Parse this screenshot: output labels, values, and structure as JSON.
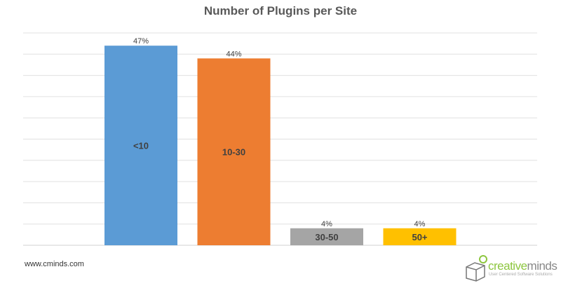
{
  "chart_data": {
    "type": "bar",
    "title": "Number of Plugins per Site",
    "categories": [
      "<10",
      "10-30",
      "30-50",
      "50+"
    ],
    "values": [
      47,
      44,
      4,
      4
    ],
    "data_labels": [
      "47%",
      "44%",
      "4%",
      "4%"
    ],
    "colors": [
      "#5B9BD5",
      "#ED7D31",
      "#A5A5A5",
      "#FFC000"
    ],
    "ylim": [
      0,
      50
    ],
    "grid_step": 5,
    "grid": true,
    "legend": "none",
    "category_labels_inside_bars": true
  },
  "footer": {
    "source": "www.cminds.com"
  },
  "logo": {
    "name_part1": "creative",
    "name_part2": "minds",
    "tagline": "User Centered Software Solutions"
  }
}
